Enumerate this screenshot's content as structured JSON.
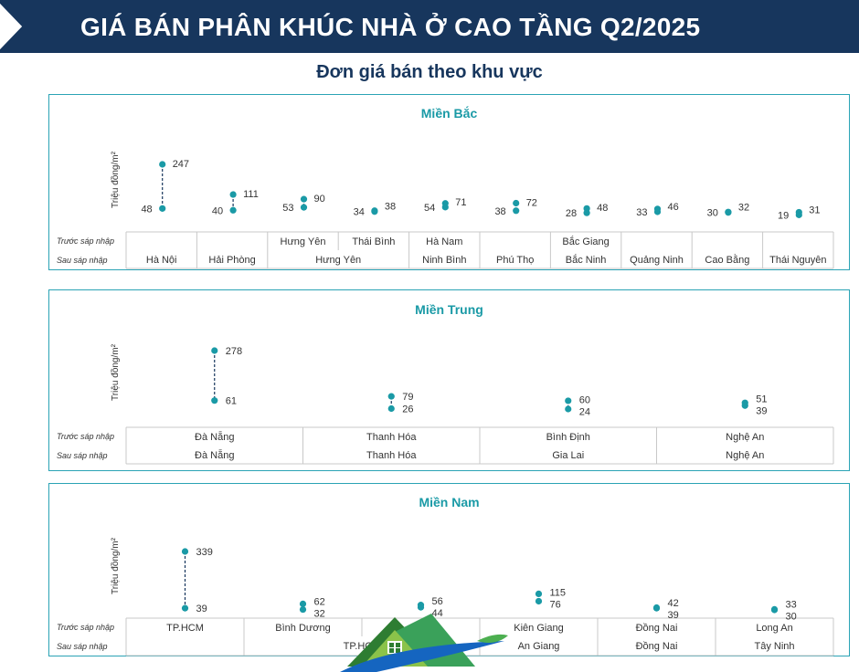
{
  "header": {
    "title": "GIÁ BÁN PHÂN KHÚC NHÀ Ở CAO TẦNG Q2/2025",
    "subtitle": "Đơn giá bán theo khu vực"
  },
  "colors": {
    "banner": "#17365d",
    "accent": "#1a9aa6",
    "border": "#2aa3b5"
  },
  "row_labels": {
    "before": "Trước sáp nhập",
    "after": "Sau sáp nhập"
  },
  "chart_data": [
    {
      "type": "dumbbell",
      "title": "Miền Bắc",
      "ylabel": "Triệu đồng/m²",
      "categories": [
        "Hà Nội",
        "Hải Phòng",
        "Hưng Yên",
        "Thái Bình",
        "Hà Nam",
        "Phú Thọ",
        "Bắc Giang",
        "Quảng Ninh",
        "Cao Bằng",
        "Thái Nguyên"
      ],
      "low": [
        48,
        40,
        53,
        34,
        54,
        38,
        28,
        33,
        30,
        19
      ],
      "high": [
        247,
        111,
        90,
        38,
        71,
        72,
        48,
        46,
        32,
        31
      ],
      "before_row": [
        "",
        "",
        "Hưng Yên",
        "Thái Bình",
        "Hà Nam",
        "",
        "Bắc Giang",
        "",
        "",
        ""
      ],
      "after_row": [
        {
          "label": "Hà Nội",
          "span": 1
        },
        {
          "label": "Hải Phòng",
          "span": 1
        },
        {
          "label": "Hưng Yên",
          "span": 2
        },
        {
          "label": "Ninh Bình",
          "span": 1
        },
        {
          "label": "Phú Thọ",
          "span": 1
        },
        {
          "label": "Bắc Ninh",
          "span": 1
        },
        {
          "label": "Quảng Ninh",
          "span": 1
        },
        {
          "label": "Cao Bằng",
          "span": 1
        },
        {
          "label": "Thái Nguyên",
          "span": 1
        }
      ]
    },
    {
      "type": "dumbbell",
      "title": "Miền Trung",
      "ylabel": "Triệu đồng/m²",
      "categories": [
        "Đà Nẵng",
        "Thanh Hóa",
        "Bình Định",
        "Nghệ An"
      ],
      "low": [
        61,
        26,
        24,
        39
      ],
      "high": [
        278,
        79,
        60,
        51
      ],
      "before_row": [
        "Đà Nẵng",
        "Thanh Hóa",
        "Bình Định",
        "Nghệ An"
      ],
      "after_row": [
        {
          "label": "Đà Nẵng",
          "span": 1
        },
        {
          "label": "Thanh Hóa",
          "span": 1
        },
        {
          "label": "Gia Lai",
          "span": 1
        },
        {
          "label": "Nghệ An",
          "span": 1
        }
      ]
    },
    {
      "type": "dumbbell",
      "title": "Miền Nam",
      "ylabel": "Triệu đồng/m²",
      "categories": [
        "TP.HCM",
        "Bình Dương",
        "",
        "Kiên Giang",
        "Đồng Nai",
        "Long An"
      ],
      "low": [
        39,
        32,
        44,
        76,
        39,
        30
      ],
      "high": [
        339,
        62,
        56,
        115,
        42,
        33
      ],
      "before_row": [
        "TP.HCM",
        "Bình Dương",
        "",
        "Kiên Giang",
        "Đồng Nai",
        "Long An"
      ],
      "after_row": [
        {
          "label": "",
          "span": 1
        },
        {
          "label": "TP.HCM",
          "span": 2
        },
        {
          "label": "An Giang",
          "span": 1
        },
        {
          "label": "Đồng Nai",
          "span": 1
        },
        {
          "label": "Tây Ninh",
          "span": 1
        }
      ]
    }
  ]
}
